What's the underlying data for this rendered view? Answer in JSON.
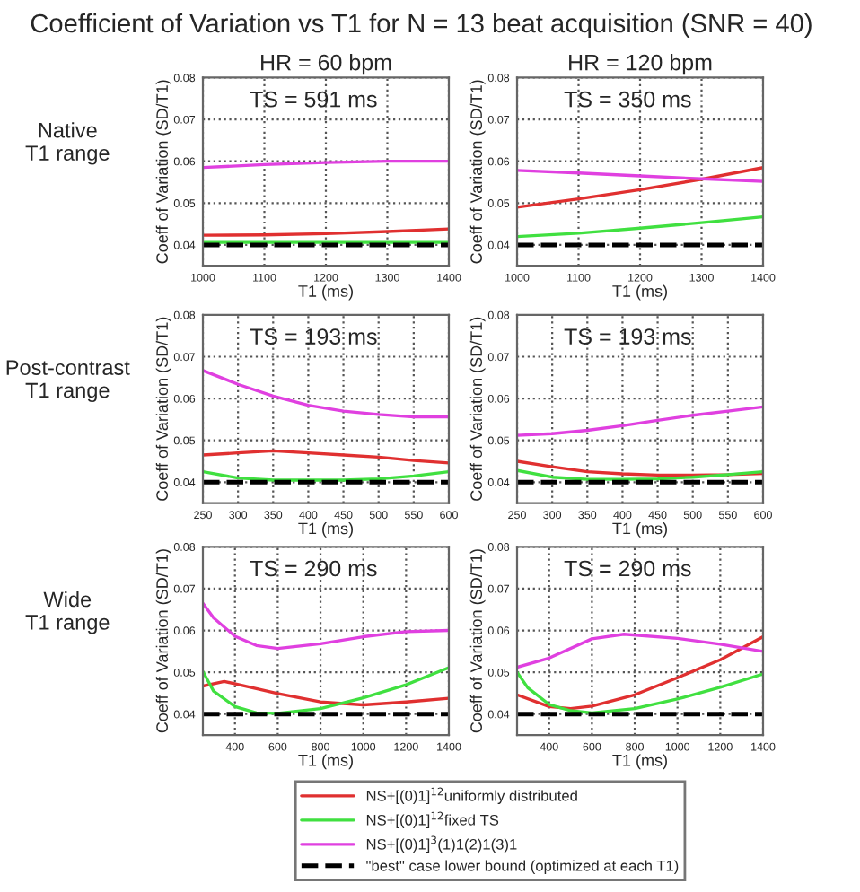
{
  "chart_data": [
    {
      "type": "line",
      "title": "Coefficient of Variation vs T1 for N = 13 beat acquisition (SNR = 40)",
      "subtitle": "HR = 60 bpm",
      "xlabel": "T1 (ms)",
      "ylabel": "Coeff of Variation (SD/T1)",
      "annotations": [
        "TS = 591 ms",
        "Native\nT1 range"
      ],
      "x": [
        1000,
        1100,
        1200,
        1300,
        1400
      ],
      "xlim": [
        1000,
        1400
      ],
      "xticks": [
        1000,
        1100,
        1200,
        1300,
        1400
      ],
      "ylim": [
        0.035,
        0.08
      ],
      "yticks": [
        0.04,
        0.05,
        0.06,
        0.07,
        0.08
      ],
      "grid": true,
      "series": [
        {
          "color": "#e03030",
          "values": [
            0.0423,
            0.0424,
            0.0427,
            0.0432,
            0.0438
          ]
        },
        {
          "color": "#40e040",
          "values": [
            0.0406,
            0.0406,
            0.0406,
            0.0406,
            0.0406
          ]
        },
        {
          "color": "#e040e0",
          "values": [
            0.0585,
            0.0592,
            0.0597,
            0.06,
            0.06
          ]
        },
        {
          "color": "#000000",
          "line_style": "dashed",
          "values": [
            0.04,
            0.04,
            0.04,
            0.04,
            0.04
          ]
        }
      ]
    },
    {
      "type": "line",
      "subtitle": "HR = 120 bpm",
      "xlabel": "T1 (ms)",
      "ylabel": "Coeff of Variation (SD/T1)",
      "annotations": [
        "TS = 350 ms"
      ],
      "x": [
        1000,
        1100,
        1200,
        1300,
        1400
      ],
      "xlim": [
        1000,
        1400
      ],
      "xticks": [
        1000,
        1100,
        1200,
        1300,
        1400
      ],
      "ylim": [
        0.035,
        0.08
      ],
      "yticks": [
        0.04,
        0.05,
        0.06,
        0.07,
        0.08
      ],
      "grid": true,
      "series": [
        {
          "color": "#e03030",
          "values": [
            0.049,
            0.051,
            0.0532,
            0.0557,
            0.0585
          ]
        },
        {
          "color": "#40e040",
          "values": [
            0.042,
            0.0428,
            0.044,
            0.0453,
            0.0467
          ]
        },
        {
          "color": "#e040e0",
          "values": [
            0.0578,
            0.0572,
            0.0565,
            0.0558,
            0.0552
          ]
        },
        {
          "color": "#000000",
          "line_style": "dashed",
          "values": [
            0.04,
            0.04,
            0.04,
            0.04,
            0.04
          ]
        }
      ]
    },
    {
      "type": "line",
      "xlabel": "T1 (ms)",
      "ylabel": "Coeff of Variation (SD/T1)",
      "annotations": [
        "TS = 193 ms",
        "Post-contrast\nT1 range"
      ],
      "x": [
        250,
        300,
        350,
        400,
        450,
        500,
        550,
        600
      ],
      "xlim": [
        250,
        600
      ],
      "xticks": [
        250,
        300,
        350,
        400,
        450,
        500,
        550,
        600
      ],
      "ylim": [
        0.035,
        0.08
      ],
      "yticks": [
        0.04,
        0.05,
        0.06,
        0.07,
        0.08
      ],
      "grid": true,
      "series": [
        {
          "color": "#e03030",
          "values": [
            0.0465,
            0.047,
            0.0475,
            0.047,
            0.0465,
            0.046,
            0.0452,
            0.0446
          ]
        },
        {
          "color": "#40e040",
          "values": [
            0.0425,
            0.041,
            0.0405,
            0.0405,
            0.0405,
            0.0408,
            0.0415,
            0.0425
          ]
        },
        {
          "color": "#e040e0",
          "values": [
            0.0667,
            0.0634,
            0.0606,
            0.0584,
            0.057,
            0.0562,
            0.0556,
            0.0556
          ]
        },
        {
          "color": "#000000",
          "line_style": "dashed",
          "values": [
            0.04,
            0.04,
            0.04,
            0.04,
            0.04,
            0.04,
            0.04,
            0.04
          ]
        }
      ]
    },
    {
      "type": "line",
      "xlabel": "T1 (ms)",
      "ylabel": "Coeff of Variation (SD/T1)",
      "annotations": [
        "TS = 193 ms"
      ],
      "x": [
        250,
        300,
        350,
        400,
        450,
        500,
        550,
        600
      ],
      "xlim": [
        250,
        600
      ],
      "xticks": [
        250,
        300,
        350,
        400,
        450,
        500,
        550,
        600
      ],
      "ylim": [
        0.035,
        0.08
      ],
      "yticks": [
        0.04,
        0.05,
        0.06,
        0.07,
        0.08
      ],
      "grid": true,
      "series": [
        {
          "color": "#e03030",
          "values": [
            0.045,
            0.0437,
            0.0425,
            0.042,
            0.0417,
            0.0417,
            0.0418,
            0.0421
          ]
        },
        {
          "color": "#40e040",
          "values": [
            0.0428,
            0.0412,
            0.0407,
            0.0407,
            0.0408,
            0.0412,
            0.0418,
            0.0425
          ]
        },
        {
          "color": "#e040e0",
          "values": [
            0.0512,
            0.0516,
            0.0524,
            0.0535,
            0.0548,
            0.056,
            0.057,
            0.058
          ]
        },
        {
          "color": "#000000",
          "line_style": "dashed",
          "values": [
            0.04,
            0.04,
            0.04,
            0.04,
            0.04,
            0.04,
            0.04,
            0.04
          ]
        }
      ]
    },
    {
      "type": "line",
      "xlabel": "T1 (ms)",
      "ylabel": "Coeff of Variation (SD/T1)",
      "annotations": [
        "TS = 290 ms",
        "Wide\nT1 range"
      ],
      "xlim": [
        250,
        1400
      ],
      "xticks": [
        400,
        600,
        800,
        1000,
        1200,
        1400
      ],
      "ylim": [
        0.035,
        0.08
      ],
      "yticks": [
        0.04,
        0.05,
        0.06,
        0.07,
        0.08
      ],
      "grid": true,
      "series": [
        {
          "color": "#e03030",
          "x": [
            250,
            350,
            500,
            600,
            800,
            1000,
            1200,
            1400
          ],
          "values": [
            0.0467,
            0.0478,
            0.0461,
            0.0449,
            0.0429,
            0.0422,
            0.0429,
            0.0438
          ]
        },
        {
          "color": "#40e040",
          "x": [
            250,
            300,
            400,
            500,
            600,
            800,
            1000,
            1200,
            1400
          ],
          "values": [
            0.0502,
            0.0455,
            0.0418,
            0.0403,
            0.0402,
            0.0413,
            0.0439,
            0.047,
            0.0511
          ]
        },
        {
          "color": "#e040e0",
          "x": [
            250,
            300,
            400,
            500,
            600,
            800,
            1000,
            1200,
            1400
          ],
          "values": [
            0.0665,
            0.063,
            0.0586,
            0.0564,
            0.0557,
            0.0568,
            0.0585,
            0.0597,
            0.06
          ]
        },
        {
          "color": "#000000",
          "line_style": "dashed",
          "x": [
            250,
            1400
          ],
          "values": [
            0.04,
            0.04
          ]
        }
      ]
    },
    {
      "type": "line",
      "xlabel": "T1 (ms)",
      "ylabel": "Coeff of Variation (SD/T1)",
      "annotations": [
        "TS = 290 ms"
      ],
      "xlim": [
        250,
        1400
      ],
      "xticks": [
        400,
        600,
        800,
        1000,
        1200,
        1400
      ],
      "ylim": [
        0.035,
        0.08
      ],
      "yticks": [
        0.04,
        0.05,
        0.06,
        0.07,
        0.08
      ],
      "grid": true,
      "legend": "bottom",
      "series": [
        {
          "name": "NS+[(0)1]$^{12}$uniformly distributed",
          "color": "#e03030",
          "x": [
            250,
            400,
            500,
            600,
            800,
            1000,
            1200,
            1400
          ],
          "values": [
            0.0446,
            0.0418,
            0.0413,
            0.0419,
            0.0446,
            0.0487,
            0.053,
            0.0585
          ]
        },
        {
          "name": "NS+[(0)1]$^{12}$fixed TS",
          "color": "#40e040",
          "x": [
            250,
            300,
            400,
            500,
            600,
            800,
            1000,
            1200,
            1400
          ],
          "values": [
            0.05,
            0.0463,
            0.0423,
            0.0408,
            0.0403,
            0.0413,
            0.0436,
            0.0464,
            0.0496
          ]
        },
        {
          "name": "NS+[(0)1]$^{3}$(1)1(2)1(3)1",
          "color": "#e040e0",
          "x": [
            250,
            400,
            600,
            750,
            1000,
            1200,
            1400
          ],
          "values": [
            0.0512,
            0.0534,
            0.058,
            0.0591,
            0.0581,
            0.0567,
            0.055
          ]
        },
        {
          "name": "\"best\" case lower bound (optimized at each T1)",
          "color": "#000000",
          "line_style": "dashed",
          "x": [
            250,
            1400
          ],
          "values": [
            0.04,
            0.04
          ]
        }
      ]
    }
  ]
}
